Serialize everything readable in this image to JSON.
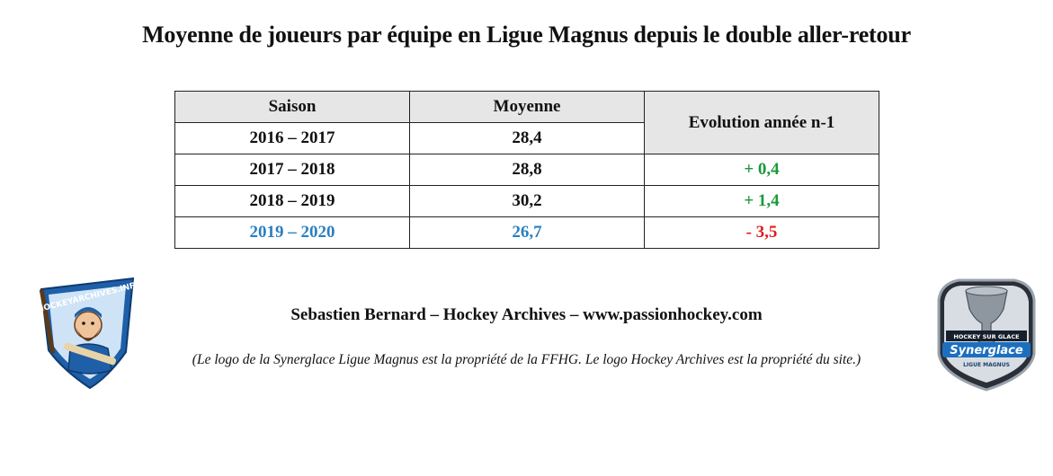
{
  "title": "Moyenne de joueurs par équipe en Ligue Magnus depuis le double aller-retour",
  "table": {
    "headers": {
      "season": "Saison",
      "average": "Moyenne",
      "evolution": "Evolution année n-1"
    },
    "rows": [
      {
        "season": "2016 – 2017",
        "average": "28,4",
        "evolution": "",
        "highlight": false
      },
      {
        "season": "2017 – 2018",
        "average": "28,8",
        "evolution": "+ 0,4",
        "evolution_color": "#1a9a3a",
        "highlight": false
      },
      {
        "season": "2018 – 2019",
        "average": "30,2",
        "evolution": "+ 1,4",
        "evolution_color": "#1a9a3a",
        "highlight": false
      },
      {
        "season": "2019 – 2020",
        "average": "26,7",
        "evolution": "- 3,5",
        "evolution_color": "#e01b1b",
        "highlight": true,
        "highlight_color": "#2a7fc1"
      }
    ]
  },
  "credit": "Sebastien Bernard – Hockey Archives – www.passionhockey.com",
  "note": "(Le logo de la Synerglace Ligue Magnus est la propriété de la FFHG. Le logo Hockey Archives est la propriété du site.)",
  "logos": {
    "left_text": "HOCKEYARCHIVES.INFO",
    "right_top": "HOCKEY SUR GLACE",
    "right_brand": "Synerglace",
    "right_bottom": "LIGUE MAGNUS"
  },
  "colors": {
    "positive": "#1a9a3a",
    "negative": "#e01b1b",
    "highlight": "#2a7fc1",
    "header_bg": "#e6e6e6"
  }
}
